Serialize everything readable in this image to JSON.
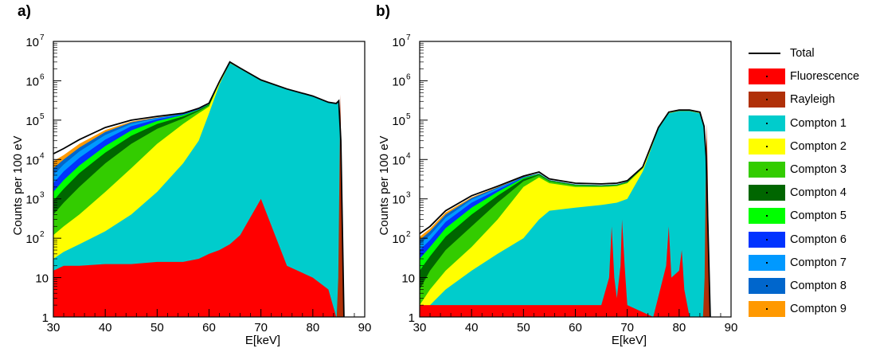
{
  "panels": [
    {
      "label": "a)"
    },
    {
      "label": "b)"
    }
  ],
  "legend": [
    {
      "name": "Total",
      "color": "#000000",
      "kind": "line"
    },
    {
      "name": "Fluorescence",
      "color": "#ff0000",
      "kind": "fill"
    },
    {
      "name": "Rayleigh",
      "color": "#b03008",
      "kind": "fill"
    },
    {
      "name": "Compton 1",
      "color": "#00cccc",
      "kind": "fill"
    },
    {
      "name": "Compton 2",
      "color": "#ffff00",
      "kind": "fill"
    },
    {
      "name": "Compton 3",
      "color": "#33cc00",
      "kind": "fill"
    },
    {
      "name": "Compton 4",
      "color": "#006600",
      "kind": "fill"
    },
    {
      "name": "Compton 5",
      "color": "#00ff00",
      "kind": "fill"
    },
    {
      "name": "Compton 6",
      "color": "#0033ff",
      "kind": "fill"
    },
    {
      "name": "Compton 7",
      "color": "#0099ff",
      "kind": "fill"
    },
    {
      "name": "Compton 8",
      "color": "#0066cc",
      "kind": "fill"
    },
    {
      "name": "Compton 9",
      "color": "#ff9900",
      "kind": "fill"
    }
  ],
  "chart_data": [
    {
      "type": "area",
      "panel": "a)",
      "xlabel": "E[keV]",
      "ylabel": "Counts per 100 eV",
      "xlim": [
        30,
        90
      ],
      "ylim": [
        1,
        10000000
      ],
      "yscale": "log",
      "xticks": [
        30,
        40,
        50,
        60,
        70,
        80,
        90
      ],
      "ytick_labels": [
        "1",
        "10",
        "10^2",
        "10^3",
        "10^4",
        "10^5",
        "10^6",
        "10^7"
      ],
      "x": [
        30,
        32,
        35,
        40,
        45,
        50,
        55,
        58,
        60,
        62,
        64,
        66,
        70,
        75,
        80,
        83,
        84.5,
        85,
        85.4,
        86
      ],
      "series": [
        {
          "name": "Compton 1",
          "values": [
            30,
            45,
            70,
            150,
            400,
            1500,
            8000,
            30000,
            150000,
            800000,
            2800000,
            2000000,
            1000000,
            600000,
            400000,
            280000,
            260000,
            300000,
            30000,
            1
          ]
        },
        {
          "name": "Compton 2",
          "values": [
            120,
            200,
            400,
            1500,
            6000,
            25000,
            80000,
            150000,
            220000,
            900000,
            2900000,
            2050000,
            1020000,
            610000,
            405000,
            282000,
            262000,
            302000,
            30000,
            1
          ]
        },
        {
          "name": "Compton 3",
          "values": [
            400,
            800,
            2000,
            8000,
            25000,
            60000,
            110000,
            170000,
            240000,
            920000,
            2900000,
            2050000,
            1020000,
            610000,
            405000,
            282000,
            262000,
            302000,
            30000,
            1
          ]
        },
        {
          "name": "Compton 4",
          "values": [
            900,
            1800,
            4500,
            15000,
            40000,
            80000,
            125000,
            180000,
            250000,
            930000,
            2900000,
            2050000,
            1020000,
            610000,
            405000,
            282000,
            262000,
            302000,
            30000,
            1
          ]
        },
        {
          "name": "Compton 5",
          "values": [
            1500,
            3000,
            7000,
            22000,
            55000,
            95000,
            135000,
            185000,
            255000,
            935000,
            2900000,
            2050000,
            1020000,
            610000,
            405000,
            282000,
            262000,
            302000,
            30000,
            1
          ]
        },
        {
          "name": "Compton 6",
          "values": [
            2500,
            5000,
            11000,
            32000,
            70000,
            105000,
            140000,
            188000,
            258000,
            938000,
            2900000,
            2050000,
            1020000,
            610000,
            405000,
            282000,
            262000,
            302000,
            30000,
            1
          ]
        },
        {
          "name": "Compton 7",
          "values": [
            4000,
            7500,
            16000,
            42000,
            80000,
            112000,
            143000,
            190000,
            260000,
            940000,
            2900000,
            2050000,
            1020000,
            610000,
            405000,
            282000,
            262000,
            302000,
            30000,
            1
          ]
        },
        {
          "name": "Compton 8",
          "values": [
            6000,
            10000,
            20000,
            50000,
            88000,
            116000,
            145000,
            192000,
            262000,
            942000,
            2900000,
            2050000,
            1020000,
            610000,
            405000,
            282000,
            262000,
            302000,
            30000,
            1
          ]
        },
        {
          "name": "Compton 9",
          "values": [
            9000,
            13000,
            25000,
            56000,
            92000,
            118000,
            146000,
            193000,
            263000,
            943000,
            2900000,
            2050000,
            1020000,
            610000,
            405000,
            282000,
            262000,
            302000,
            30000,
            1
          ]
        },
        {
          "name": "Total",
          "values": [
            14000,
            19000,
            32000,
            65000,
            100000,
            125000,
            150000,
            200000,
            270000,
            950000,
            3000000,
            2100000,
            1050000,
            620000,
            410000,
            285000,
            265000,
            310000,
            30000,
            1
          ]
        },
        {
          "name": "Fluorescence",
          "values": [
            15,
            20,
            20,
            22,
            22,
            25,
            25,
            30,
            40,
            50,
            70,
            120,
            1000,
            20,
            10,
            5,
            1,
            1,
            1,
            1
          ]
        },
        {
          "name": "Rayleigh",
          "x": [
            84.6,
            84.9,
            85.1,
            85.3,
            85.5,
            85.7,
            86.0
          ],
          "values": [
            1,
            10,
            2000,
            450000,
            8000,
            50,
            1
          ]
        }
      ]
    },
    {
      "type": "area",
      "panel": "b)",
      "xlabel": "E[keV]",
      "ylabel": "Counts per 100 eV",
      "xlim": [
        30,
        90
      ],
      "ylim": [
        1,
        10000000
      ],
      "yscale": "log",
      "xticks": [
        30,
        40,
        50,
        60,
        70,
        80,
        90
      ],
      "ytick_labels": [
        "1",
        "10",
        "10^2",
        "10^3",
        "10^4",
        "10^5",
        "10^6",
        "10^7"
      ],
      "x": [
        30,
        32,
        35,
        40,
        45,
        50,
        53,
        55,
        60,
        65,
        68,
        70,
        73,
        76,
        78,
        80,
        82,
        84,
        84.8,
        85.2,
        86
      ],
      "series": [
        {
          "name": "Compton 1",
          "values": [
            1,
            2,
            5,
            15,
            40,
            100,
            300,
            500,
            600,
            700,
            800,
            1000,
            5000,
            60000,
            150000,
            170000,
            170000,
            150000,
            60000,
            10000,
            1
          ]
        },
        {
          "name": "Compton 2",
          "values": [
            2,
            5,
            15,
            60,
            300,
            2000,
            3500,
            2500,
            2000,
            2000,
            2100,
            2500,
            6000,
            62000,
            152000,
            172000,
            172000,
            152000,
            60000,
            10000,
            1
          ]
        },
        {
          "name": "Compton 3",
          "values": [
            5,
            15,
            50,
            200,
            800,
            2800,
            4000,
            2800,
            2200,
            2100,
            2200,
            2600,
            6100,
            62000,
            152000,
            172000,
            172000,
            152000,
            60000,
            10000,
            1
          ]
        },
        {
          "name": "Compton 4",
          "values": [
            15,
            35,
            110,
            400,
            1200,
            3200,
            4200,
            2900,
            2250,
            2150,
            2250,
            2650,
            6100,
            62000,
            152000,
            172000,
            172000,
            152000,
            60000,
            10000,
            1
          ]
        },
        {
          "name": "Compton 5",
          "values": [
            30,
            60,
            180,
            600,
            1500,
            3400,
            4300,
            2950,
            2280,
            2180,
            2280,
            2700,
            6150,
            62000,
            152000,
            172000,
            172000,
            152000,
            60000,
            10000,
            1
          ]
        },
        {
          "name": "Compton 6",
          "values": [
            50,
            90,
            260,
            800,
            1700,
            3500,
            4350,
            2980,
            2300,
            2200,
            2300,
            2720,
            6150,
            62000,
            152000,
            172000,
            172000,
            152000,
            60000,
            10000,
            1
          ]
        },
        {
          "name": "Compton 7",
          "values": [
            70,
            120,
            330,
            950,
            1850,
            3550,
            4400,
            3000,
            2320,
            2220,
            2320,
            2740,
            6200,
            62000,
            152000,
            172000,
            172000,
            152000,
            60000,
            10000,
            1
          ]
        },
        {
          "name": "Compton 8",
          "values": [
            90,
            150,
            400,
            1050,
            1950,
            3600,
            4420,
            3010,
            2330,
            2230,
            2330,
            2750,
            6200,
            62000,
            152000,
            172000,
            172000,
            152000,
            60000,
            10000,
            1
          ]
        },
        {
          "name": "Compton 9",
          "values": [
            110,
            175,
            450,
            1100,
            2000,
            3650,
            4450,
            3020,
            2340,
            2240,
            2340,
            2760,
            6200,
            62000,
            152000,
            172000,
            172000,
            152000,
            60000,
            10000,
            1
          ]
        },
        {
          "name": "Total",
          "values": [
            130,
            200,
            500,
            1200,
            2100,
            3800,
            4800,
            3200,
            2500,
            2400,
            2500,
            2900,
            6500,
            65000,
            160000,
            180000,
            180000,
            160000,
            70000,
            12000,
            1
          ]
        },
        {
          "name": "Fluorescence",
          "x": [
            30,
            40,
            50,
            60,
            65,
            66.5,
            67,
            67.5,
            68,
            68.7,
            69,
            69.5,
            70,
            75,
            77.5,
            78,
            78.5,
            80,
            80.5,
            81,
            82
          ],
          "values": [
            2,
            2,
            2,
            2,
            2,
            10,
            200,
            10,
            3,
            20,
            300,
            20,
            2,
            1,
            20,
            200,
            10,
            15,
            50,
            5,
            1
          ]
        },
        {
          "name": "Rayleigh",
          "x": [
            84.6,
            84.9,
            85.1,
            85.3,
            85.5,
            85.7,
            86.0
          ],
          "values": [
            1,
            10,
            2000,
            80000,
            5000,
            50,
            1
          ]
        }
      ]
    }
  ]
}
